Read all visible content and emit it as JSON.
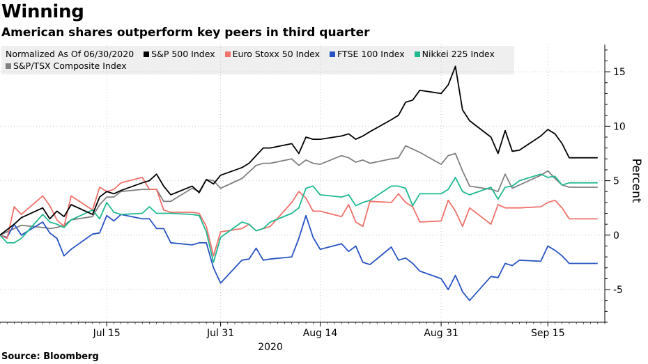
{
  "header": {
    "title": "Winning",
    "subtitle": "American shares outperform key peers in third quarter"
  },
  "footer": {
    "source": "Source: Bloomberg"
  },
  "chart_data": {
    "type": "line",
    "title": "Winning",
    "subtitle": "American shares outperform key peers in third quarter",
    "legend_note": "Normalized As Of 06/30/2020",
    "legend_placement": "top",
    "xlabel": "2020",
    "ylabel": "Percent",
    "y_axis_side": "right",
    "ylim": [
      -8,
      17.5
    ],
    "xlim": [
      "2020-06-30",
      "2020-09-23"
    ],
    "grid": {
      "horizontal": "dotted",
      "vertical": "dotted"
    },
    "x_ticks": [
      {
        "date": "2020-07-15",
        "label": "Jul 15"
      },
      {
        "date": "2020-07-31",
        "label": "Jul 31"
      },
      {
        "date": "2020-08-14",
        "label": "Aug 14"
      },
      {
        "date": "2020-08-31",
        "label": "Aug 31"
      },
      {
        "date": "2020-09-15",
        "label": "Sep 15"
      }
    ],
    "y_ticks": [
      15,
      10,
      5,
      0,
      -5
    ],
    "x": [
      "2020-06-30",
      "2020-07-01",
      "2020-07-02",
      "2020-07-03",
      "2020-07-06",
      "2020-07-07",
      "2020-07-08",
      "2020-07-09",
      "2020-07-10",
      "2020-07-13",
      "2020-07-14",
      "2020-07-15",
      "2020-07-16",
      "2020-07-17",
      "2020-07-20",
      "2020-07-21",
      "2020-07-22",
      "2020-07-23",
      "2020-07-24",
      "2020-07-27",
      "2020-07-28",
      "2020-07-29",
      "2020-07-30",
      "2020-07-31",
      "2020-08-03",
      "2020-08-04",
      "2020-08-05",
      "2020-08-06",
      "2020-08-07",
      "2020-08-10",
      "2020-08-11",
      "2020-08-12",
      "2020-08-13",
      "2020-08-14",
      "2020-08-17",
      "2020-08-18",
      "2020-08-19",
      "2020-08-20",
      "2020-08-21",
      "2020-08-24",
      "2020-08-25",
      "2020-08-26",
      "2020-08-27",
      "2020-08-28",
      "2020-08-31",
      "2020-09-01",
      "2020-09-02",
      "2020-09-03",
      "2020-09-04",
      "2020-09-07",
      "2020-09-08",
      "2020-09-09",
      "2020-09-10",
      "2020-09-11",
      "2020-09-14",
      "2020-09-15",
      "2020-09-16",
      "2020-09-17",
      "2020-09-18",
      "2020-09-21",
      "2020-09-22"
    ],
    "series": [
      {
        "name": "S&P 500 Index",
        "color": "#000000",
        "values": [
          0,
          0.5,
          1.0,
          1.6,
          2.5,
          1.5,
          2.2,
          1.7,
          2.8,
          1.9,
          3.5,
          4.0,
          3.8,
          4.1,
          4.8,
          5.0,
          5.6,
          4.5,
          3.7,
          4.5,
          3.9,
          5.1,
          4.7,
          5.5,
          6.2,
          6.6,
          7.3,
          8.0,
          8.0,
          8.4,
          7.5,
          9.0,
          8.8,
          8.8,
          9.1,
          9.3,
          8.8,
          9.1,
          9.5,
          10.6,
          11.0,
          12.2,
          12.4,
          13.3,
          13.0,
          13.8,
          15.5,
          11.5,
          10.5,
          9.0,
          7.5,
          9.6,
          7.7,
          7.8,
          9.1,
          9.7,
          9.3,
          8.4,
          7.1,
          7.1,
          7.1
        ]
      },
      {
        "name": "Euro Stoxx 50 Index",
        "color": "#f0706a",
        "values": [
          0,
          -0.3,
          2.6,
          1.9,
          3.6,
          2.7,
          1.4,
          0.8,
          3.6,
          2.3,
          4.4,
          4.0,
          4.2,
          4.8,
          5.3,
          4.2,
          4.2,
          2.3,
          2.1,
          2.1,
          2.0,
          0.8,
          -1.9,
          0.3,
          0.6,
          1.0,
          0.4,
          0.6,
          0.8,
          3.0,
          4.0,
          3.4,
          2.2,
          2.2,
          1.7,
          2.8,
          1.2,
          0.8,
          3.1,
          3.0,
          3.8,
          3.0,
          2.6,
          1.2,
          1.3,
          3.2,
          2.2,
          0.8,
          2.5,
          1.0,
          2.8,
          2.5,
          2.5,
          2.5,
          2.6,
          3.0,
          3.2,
          2.5,
          1.5,
          1.5,
          1.5
        ]
      },
      {
        "name": "FTSE 100 Index",
        "color": "#2753c2",
        "values": [
          0,
          -0.2,
          1.0,
          0.0,
          1.2,
          0.2,
          -0.3,
          -1.9,
          -1.3,
          0.1,
          0.2,
          1.8,
          1.3,
          1.9,
          1.5,
          1.5,
          0.6,
          0.6,
          -0.7,
          -0.9,
          -0.7,
          -0.7,
          -3.0,
          -4.4,
          -2.3,
          -2.2,
          -1.2,
          -2.3,
          -2.2,
          -2.0,
          -0.3,
          1.8,
          -0.2,
          -1.3,
          -0.8,
          -1.5,
          -1.0,
          -2.5,
          -2.7,
          -1.1,
          -2.3,
          -2.1,
          -2.6,
          -3.3,
          -4.0,
          -5.0,
          -3.7,
          -5.2,
          -6.0,
          -3.8,
          -3.9,
          -2.6,
          -2.8,
          -2.3,
          -2.4,
          -1.0,
          -1.4,
          -1.9,
          -2.6,
          -2.6,
          -2.6
        ]
      },
      {
        "name": "Nikkei 225 Index",
        "color": "#1fb891",
        "values": [
          0,
          -0.7,
          -0.7,
          -0.3,
          1.9,
          1.2,
          1.0,
          0.7,
          1.4,
          2.3,
          1.5,
          3.0,
          2.1,
          1.9,
          2.0,
          2.6,
          2.0,
          2.0,
          2.0,
          1.9,
          1.8,
          0.3,
          -2.5,
          -0.2,
          1.2,
          1.0,
          0.4,
          0.6,
          1.2,
          2.0,
          2.5,
          4.3,
          4.5,
          3.7,
          3.5,
          3.7,
          2.7,
          3.0,
          3.2,
          4.5,
          4.5,
          4.3,
          2.7,
          3.8,
          3.8,
          4.2,
          5.3,
          4.0,
          3.7,
          4.4,
          3.3,
          4.4,
          4.5,
          5.0,
          5.6,
          5.3,
          5.4,
          4.6,
          4.8,
          4.8,
          4.8
        ]
      },
      {
        "name": "S&P/TSX Composite Index",
        "color": "#808080",
        "values": [
          0,
          0.3,
          0.6,
          0.9,
          0.7,
          0.6,
          0.7,
          0.9,
          1.4,
          1.7,
          2.8,
          3.5,
          3.5,
          4.0,
          4.2,
          4.2,
          4.2,
          3.1,
          3.1,
          4.3,
          4.0,
          5.1,
          5.0,
          4.3,
          5.2,
          5.8,
          6.4,
          6.6,
          6.6,
          7.0,
          6.4,
          6.9,
          6.6,
          6.5,
          7.3,
          7.1,
          6.7,
          6.9,
          6.6,
          7.0,
          7.1,
          8.2,
          7.9,
          7.6,
          6.5,
          7.3,
          7.5,
          5.9,
          4.5,
          4.2,
          4.0,
          5.6,
          4.3,
          4.6,
          5.5,
          5.9,
          5.2,
          4.6,
          4.4,
          4.4,
          4.4
        ]
      }
    ]
  }
}
